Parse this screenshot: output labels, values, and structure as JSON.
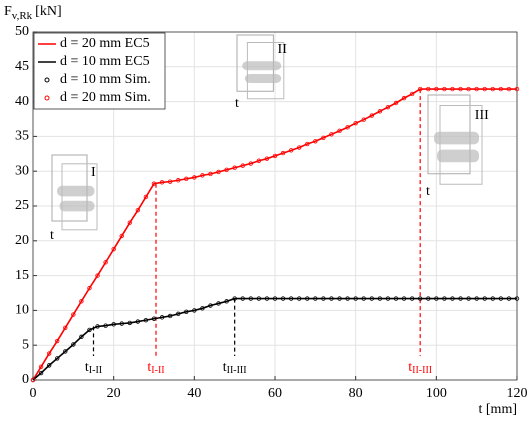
{
  "chart_data": {
    "type": "line",
    "ylabel": {
      "text": "F",
      "subscript": "v,Rk",
      "unit": "[kN]"
    },
    "xlabel": "t [mm]",
    "x": [
      0,
      2,
      4,
      6,
      8,
      10,
      12,
      14,
      16,
      18,
      20,
      22,
      24,
      26,
      28,
      30,
      32,
      34,
      36,
      38,
      40,
      42,
      44,
      46,
      48,
      50,
      52,
      54,
      56,
      58,
      60,
      62,
      64,
      66,
      68,
      70,
      72,
      74,
      76,
      78,
      80,
      82,
      84,
      86,
      88,
      90,
      92,
      94,
      96,
      98,
      100,
      102,
      104,
      106,
      108,
      110,
      112,
      114,
      116,
      118,
      120
    ],
    "series": [
      {
        "name": "d = 20 mm EC5",
        "color": "#ff0000",
        "style": "line",
        "values": [
          0,
          1.9,
          3.8,
          5.6,
          7.5,
          9.4,
          11.3,
          13.2,
          15.0,
          16.9,
          18.8,
          20.7,
          22.6,
          24.4,
          26.3,
          28.2,
          28.4,
          28.5,
          28.7,
          28.9,
          29.1,
          29.4,
          29.6,
          29.9,
          30.2,
          30.5,
          30.8,
          31.1,
          31.5,
          31.8,
          32.2,
          32.6,
          33.0,
          33.4,
          33.9,
          34.3,
          34.8,
          35.3,
          35.8,
          36.3,
          36.9,
          37.4,
          38.0,
          38.6,
          39.2,
          39.8,
          40.5,
          41.1,
          41.8,
          41.8,
          41.8,
          41.8,
          41.8,
          41.8,
          41.8,
          41.8,
          41.8,
          41.8,
          41.8,
          41.8,
          41.8
        ]
      },
      {
        "name": "d = 10 mm EC5",
        "color": "#000000",
        "style": "line",
        "values": [
          0,
          1.0,
          2.1,
          3.1,
          4.1,
          5.1,
          6.2,
          7.2,
          7.7,
          7.8,
          8.0,
          8.1,
          8.2,
          8.4,
          8.6,
          8.8,
          9.0,
          9.2,
          9.5,
          9.8,
          10.0,
          10.3,
          10.7,
          11.0,
          11.3,
          11.7,
          11.7,
          11.7,
          11.7,
          11.7,
          11.7,
          11.7,
          11.7,
          11.7,
          11.7,
          11.7,
          11.7,
          11.7,
          11.7,
          11.7,
          11.7,
          11.7,
          11.7,
          11.7,
          11.7,
          11.7,
          11.7,
          11.7,
          11.7,
          11.7,
          11.7,
          11.7,
          11.7,
          11.7,
          11.7,
          11.7,
          11.7,
          11.7,
          11.7,
          11.7,
          11.7
        ]
      },
      {
        "name": "d = 10 mm Sim.",
        "color": "#000000",
        "style": "markers",
        "values": [
          0,
          1.0,
          2.1,
          3.1,
          4.1,
          5.1,
          6.2,
          7.2,
          7.7,
          7.8,
          8.0,
          8.1,
          8.2,
          8.4,
          8.6,
          8.8,
          9.0,
          9.2,
          9.5,
          9.8,
          10.0,
          10.3,
          10.7,
          11.0,
          11.3,
          11.7,
          11.7,
          11.7,
          11.7,
          11.7,
          11.7,
          11.7,
          11.7,
          11.7,
          11.7,
          11.7,
          11.7,
          11.7,
          11.7,
          11.7,
          11.7,
          11.7,
          11.7,
          11.7,
          11.7,
          11.7,
          11.7,
          11.7,
          11.7,
          11.7,
          11.7,
          11.7,
          11.7,
          11.7,
          11.7,
          11.7,
          11.7,
          11.7,
          11.7,
          11.7,
          11.7
        ]
      },
      {
        "name": "d = 20 mm Sim.",
        "color": "#ff0000",
        "style": "markers",
        "values": [
          0,
          1.9,
          3.8,
          5.6,
          7.5,
          9.4,
          11.3,
          13.2,
          15.0,
          16.9,
          18.8,
          20.7,
          22.6,
          24.4,
          26.3,
          28.2,
          28.4,
          28.5,
          28.7,
          28.9,
          29.1,
          29.4,
          29.6,
          29.9,
          30.2,
          30.5,
          30.8,
          31.1,
          31.5,
          31.8,
          32.2,
          32.6,
          33.0,
          33.4,
          33.9,
          34.3,
          34.8,
          35.3,
          35.8,
          36.3,
          36.9,
          37.4,
          38.0,
          38.6,
          39.2,
          39.8,
          40.5,
          41.1,
          41.8,
          41.8,
          41.8,
          41.8,
          41.8,
          41.8,
          41.8,
          41.8,
          41.8,
          41.8,
          41.8,
          41.8,
          41.8
        ]
      }
    ],
    "xlim": [
      0,
      120
    ],
    "xticks": [
      0,
      20,
      40,
      60,
      80,
      100,
      120
    ],
    "ylim": [
      0,
      50
    ],
    "yticks": [
      0,
      5,
      10,
      15,
      20,
      25,
      30,
      35,
      40,
      45,
      50
    ],
    "grid": true,
    "legend": "top-left",
    "annotations": [
      {
        "text": "t",
        "subscript": "I-II",
        "x": 15,
        "y": 7.7,
        "color": "#000000"
      },
      {
        "text": "t",
        "subscript": "I-II",
        "x": 30.5,
        "y": 28.2,
        "color": "#ff0000"
      },
      {
        "text": "t",
        "subscript": "II-III",
        "x": 50,
        "y": 11.7,
        "color": "#000000"
      },
      {
        "text": "t",
        "subscript": "II-III",
        "x": 96,
        "y": 41.8,
        "color": "#ff0000"
      }
    ],
    "insets": [
      {
        "label": "I",
        "t_label": "t"
      },
      {
        "label": "II",
        "t_label": "t"
      },
      {
        "label": "III",
        "t_label": "t"
      }
    ]
  }
}
